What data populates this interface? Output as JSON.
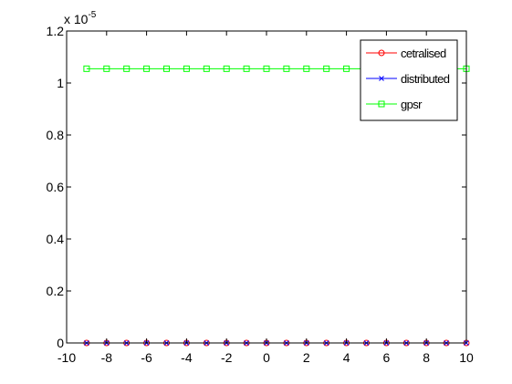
{
  "chart_data": {
    "type": "line",
    "title": "",
    "xlabel": "",
    "ylabel": "",
    "xlim": [
      -10,
      10
    ],
    "ylim": [
      0,
      1.2
    ],
    "y_scale_label_base": "x 10",
    "y_scale_label_exp": "-5",
    "xticks": [
      -10,
      -8,
      -6,
      -4,
      -2,
      0,
      2,
      4,
      6,
      8,
      10
    ],
    "yticks": [
      0,
      0.2,
      0.4,
      0.6,
      0.8,
      1,
      1.2
    ],
    "ytick_labels": [
      "0",
      "0.2",
      "0.4",
      "0.6",
      "0.8",
      "1",
      "1.2"
    ],
    "grid": false,
    "legend_position": "top-right",
    "x": [
      -9,
      -8,
      -7,
      -6,
      -5,
      -4,
      -3,
      -2,
      -1,
      0,
      1,
      2,
      3,
      4,
      5,
      6,
      7,
      8,
      9,
      10
    ],
    "series": [
      {
        "name": "cetralised",
        "color": "#ff0000",
        "marker": "circle",
        "values": [
          0,
          0,
          0,
          0,
          0,
          0,
          0,
          0,
          0,
          0,
          0,
          0,
          0,
          0,
          0,
          0,
          0,
          0,
          0,
          0
        ]
      },
      {
        "name": "distributed",
        "color": "#0000ff",
        "marker": "x",
        "values": [
          0,
          0,
          0,
          0,
          0,
          0,
          0,
          0,
          0,
          0,
          0,
          0,
          0,
          0,
          0,
          0,
          0,
          0,
          0,
          0
        ]
      },
      {
        "name": "gpsr",
        "color": "#00ff00",
        "marker": "square",
        "values": [
          1.055,
          1.055,
          1.055,
          1.055,
          1.055,
          1.055,
          1.055,
          1.055,
          1.055,
          1.055,
          1.055,
          1.055,
          1.055,
          1.055,
          1.055,
          1.055,
          1.055,
          1.055,
          1.055,
          1.055
        ]
      }
    ]
  }
}
